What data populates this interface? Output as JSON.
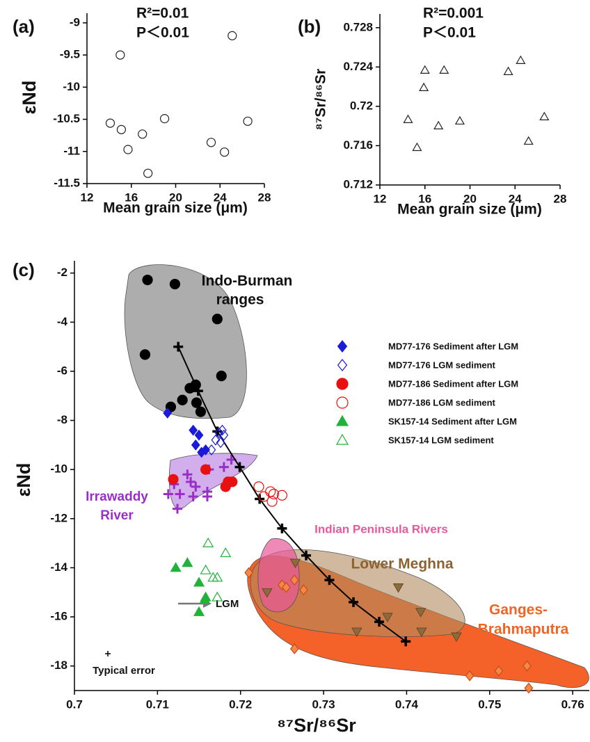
{
  "chart_data": [
    {
      "type": "scatter",
      "panel_label": "(a)",
      "annotations": [
        "R²=0.01",
        "P＜0.01"
      ],
      "x_label": "Mean grain size (μm)",
      "y_label": "εNd",
      "xlim": [
        12,
        28
      ],
      "xticks": [
        12,
        16,
        20,
        24,
        28
      ],
      "ylim": [
        -11.5,
        -8.85
      ],
      "yticks": [
        -9,
        -9.5,
        -10,
        -10.5,
        -11,
        -11.5
      ],
      "grid": false,
      "series": [
        {
          "marker": "circle",
          "color": "#222222",
          "filled": false,
          "x": [
            15.0,
            25.1,
            14.1,
            15.1,
            15.7,
            17.0,
            19.0,
            17.5,
            23.2,
            24.4,
            26.5
          ],
          "values": [
            -9.5,
            -9.2,
            -10.56,
            -10.66,
            -10.97,
            -10.73,
            -10.49,
            -11.34,
            -10.86,
            -11.01,
            -10.53
          ]
        }
      ]
    },
    {
      "type": "scatter",
      "panel_label": "(b)",
      "annotations": [
        "R²=0.001",
        "P＜0.01"
      ],
      "x_label": "Mean grain size (μm)",
      "y_label": "⁸⁷Sr/⁸⁶Sr",
      "xlim": [
        12,
        28
      ],
      "xticks": [
        12,
        16,
        20,
        24,
        28
      ],
      "ylim": [
        0.712,
        0.7294
      ],
      "yticks": [
        0.712,
        0.716,
        0.72,
        0.724,
        0.728
      ],
      "grid": false,
      "series": [
        {
          "marker": "triangle",
          "color": "#222222",
          "filled": false,
          "x": [
            14.5,
            15.9,
            15.3,
            16.0,
            17.7,
            17.2,
            19.1,
            23.4,
            24.5,
            25.2,
            26.6
          ],
          "values": [
            0.71866,
            0.72191,
            0.71582,
            0.72368,
            0.72368,
            0.71802,
            0.71851,
            0.72354,
            0.72467,
            0.71646,
            0.71894
          ]
        }
      ]
    },
    {
      "type": "scatter",
      "panel_label": "(c)",
      "annotations": [
        "Indo-Burman",
        "ranges",
        "Irrawaddy",
        "River",
        "Indian Peninsula Rivers",
        "Lower Meghna",
        "Ganges-",
        "Brahmaputra",
        "LGM",
        "Typical error"
      ],
      "x_label": "⁸⁷Sr/⁸⁶Sr",
      "y_label": "εNd",
      "xlim": [
        0.7,
        0.762
      ],
      "xticks": [
        0.7,
        0.71,
        0.72,
        0.73,
        0.74,
        0.75,
        0.76
      ],
      "ylim": [
        -19,
        -1.5
      ],
      "yticks": [
        -2,
        -4,
        -6,
        -8,
        -10,
        -12,
        -14,
        -16,
        -18
      ],
      "grid": false,
      "series": [
        {
          "marker": "triangle-down",
          "color": "#8c6a3c",
          "filled": true,
          "x": [
            0.7266,
            0.7232,
            0.734,
            0.7377,
            0.739,
            0.7417,
            0.7418,
            0.746
          ],
          "values": [
            -13.8,
            -15.0,
            -16.6,
            -16.0,
            -14.8,
            -15.8,
            -16.6,
            -16.8
          ]
        },
        {
          "marker": "diamond",
          "color": "#f4874a",
          "filled": true,
          "x": [
            0.721,
            0.725,
            0.7255,
            0.7265,
            0.7276,
            0.7265,
            0.7476,
            0.7511,
            0.7545,
            0.7547
          ],
          "values": [
            -14.2,
            -14.7,
            -14.8,
            -14.5,
            -14.9,
            -17.3,
            -18.4,
            -18.2,
            -18.0,
            -18.9
          ]
        },
        {
          "marker": "circle",
          "color": "#000000",
          "filled": true,
          "x": [
            0.7088,
            0.7121,
            0.7172,
            0.7085,
            0.7177,
            0.7116,
            0.713,
            0.7139,
            0.7146,
            0.7147,
            0.7152
          ],
          "values": [
            -2.28,
            -2.45,
            -3.87,
            -5.32,
            -6.19,
            -7.45,
            -7.17,
            -6.69,
            -6.55,
            -7.28,
            -7.65
          ]
        },
        {
          "marker": "plus",
          "color": "#9a2fc8",
          "filled": true,
          "x": [
            0.7113,
            0.712,
            0.7127,
            0.7124,
            0.7136,
            0.714,
            0.7143,
            0.716,
            0.716,
            0.7162,
            0.718,
            0.7189,
            0.7146
          ],
          "values": [
            -11.0,
            -10.6,
            -11.0,
            -11.6,
            -10.2,
            -10.5,
            -11.1,
            -10.9,
            -11.1,
            -10.0,
            -9.9,
            -9.6,
            -10.7
          ]
        },
        {
          "marker": "plus",
          "color": "#000000",
          "filled": true,
          "line": true,
          "x": [
            0.7125,
            0.7149,
            0.7172,
            0.7199,
            0.7223,
            0.725,
            0.7279,
            0.7307,
            0.7336,
            0.7367,
            0.7399
          ],
          "values": [
            -5.0,
            -6.8,
            -8.45,
            -9.9,
            -11.2,
            -12.4,
            -13.5,
            -14.5,
            -15.4,
            -16.2,
            -17.0
          ]
        },
        {
          "name": "MD77-176 Sediment after LGM",
          "marker": "diamond",
          "color": "#1a1ad8",
          "filled": true,
          "x": [
            0.7112,
            0.7143,
            0.715,
            0.7146,
            0.7153,
            0.7158
          ],
          "values": [
            -7.7,
            -8.4,
            -8.6,
            -9.0,
            -9.3,
            -9.2
          ]
        },
        {
          "name": "MD77-176 LGM sediment",
          "marker": "diamond",
          "color": "#1a1ad8",
          "filled": false,
          "x": [
            0.7165,
            0.717,
            0.7174,
            0.7176,
            0.718,
            0.7178
          ],
          "values": [
            -9.2,
            -8.8,
            -8.5,
            -8.9,
            -8.6,
            -8.4
          ]
        },
        {
          "name": "MD77-186 Sediment after LGM",
          "marker": "circle",
          "color": "#e81010",
          "filled": true,
          "x": [
            0.7119,
            0.7158,
            0.7182,
            0.7185,
            0.719
          ],
          "values": [
            -10.4,
            -10.0,
            -10.7,
            -10.5,
            -10.5
          ]
        },
        {
          "name": "MD77-186 LGM sediment",
          "marker": "circle",
          "color": "#e81010",
          "filled": false,
          "x": [
            0.7222,
            0.7236,
            0.724,
            0.7238,
            0.725,
            0.7228
          ],
          "values": [
            -10.7,
            -10.9,
            -11.0,
            -11.3,
            -11.05,
            -11.1
          ]
        },
        {
          "name": "SK157-14 Sediment after LGM",
          "marker": "triangle",
          "color": "#1fb33a",
          "filled": true,
          "x": [
            0.7122,
            0.7136,
            0.715,
            0.7158,
            0.7157,
            0.715
          ],
          "values": [
            -14.0,
            -13.8,
            -14.6,
            -15.2,
            -15.3,
            -15.8
          ]
        },
        {
          "name": "SK157-14 LGM sediment",
          "marker": "triangle",
          "color": "#1fb33a",
          "filled": false,
          "x": [
            0.7161,
            0.7158,
            0.7167,
            0.7172,
            0.7182,
            0.7172
          ],
          "values": [
            -13.0,
            -14.1,
            -14.4,
            -14.4,
            -13.4,
            -15.2
          ]
        }
      ]
    }
  ]
}
